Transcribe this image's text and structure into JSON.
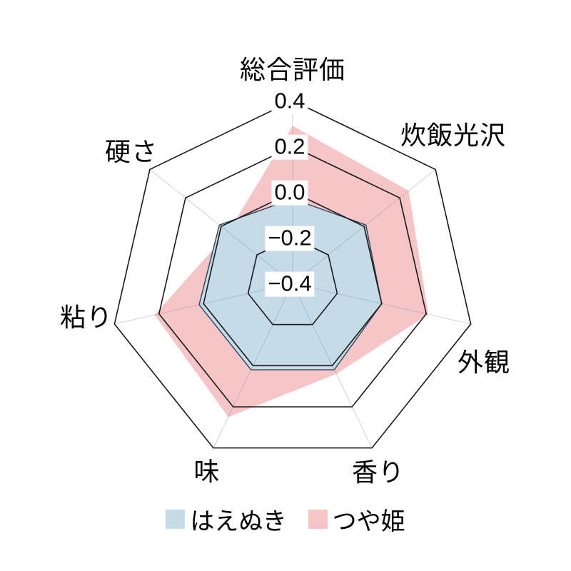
{
  "chart_data": {
    "type": "radar",
    "title": "",
    "categories": [
      "総合評価",
      "炊飯光沢",
      "外観",
      "香り",
      "味",
      "粘り",
      "硬さ"
    ],
    "series": [
      {
        "id": "haenuki",
        "name": "はえぬき",
        "fill": "#c5dbe7",
        "stroke": "#2f4455",
        "stroke_width": 1.4,
        "values": [
          -0.03,
          0.01,
          0.0,
          0.02,
          0.02,
          0.02,
          0.01
        ]
      },
      {
        "id": "tsuyahime",
        "name": "つや姫",
        "fill": "#f6c5c8",
        "stroke": "none",
        "stroke_width": 0,
        "values": [
          0.29,
          0.25,
          0.21,
          0.04,
          0.25,
          0.22,
          -0.04
        ]
      }
    ],
    "ticks": [
      {
        "label": "0.4",
        "value": 0.4
      },
      {
        "label": "0.2",
        "value": 0.2
      },
      {
        "label": "0.0",
        "value": 0.0
      },
      {
        "label": "−0.2",
        "value": -0.2
      },
      {
        "label": "−0.4",
        "value": -0.4
      }
    ],
    "axis": {
      "min": -0.4,
      "max": 0.4,
      "rings": [
        0.4,
        0.2,
        0.0,
        -0.2
      ],
      "grid_color": "#1a1a1a",
      "spoke_color": "#8a8a8a"
    },
    "legend": {
      "items": [
        {
          "label": "はえぬき",
          "color": "#c5dbe7"
        },
        {
          "label": "つや姫",
          "color": "#f6c5c8"
        }
      ]
    },
    "background": "#ffffff"
  }
}
